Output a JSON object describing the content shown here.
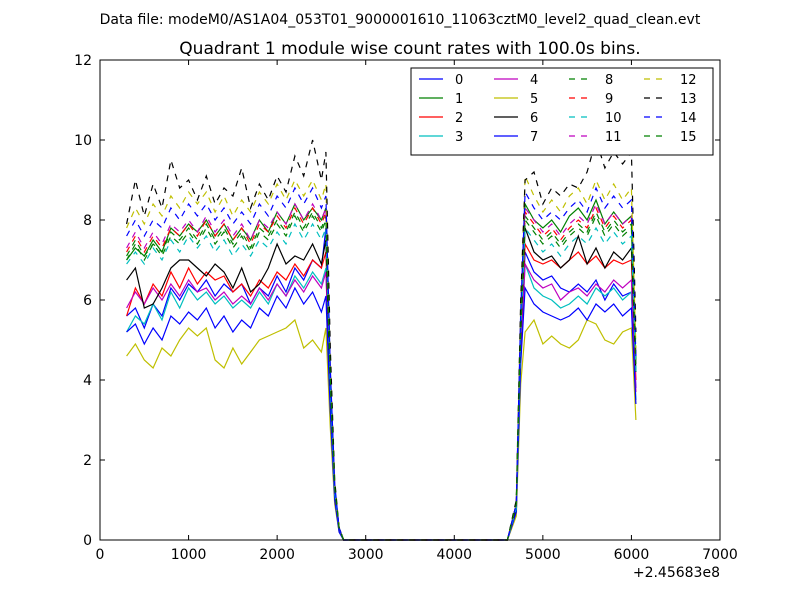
{
  "chart_data": {
    "type": "line",
    "suptitle": "Data file: modeM0/AS1A04_053T01_9000001610_11063cztM0_level2_quad_clean.evt",
    "title": "Quadrant 1 module wise count rates with 100.0s bins.",
    "xlabel": "",
    "ylabel": "",
    "offset_label": "+2.45683e8",
    "xlim": [
      0,
      7000
    ],
    "ylim": [
      0,
      12
    ],
    "xticks": [
      "0",
      "1000",
      "2000",
      "3000",
      "4000",
      "5000",
      "6000",
      "7000"
    ],
    "yticks": [
      "0",
      "2",
      "4",
      "6",
      "8",
      "10",
      "12"
    ],
    "legend_position": "top-right",
    "x": [
      300,
      400,
      500,
      600,
      700,
      800,
      900,
      1000,
      1100,
      1200,
      1300,
      1400,
      1500,
      1600,
      1700,
      1800,
      1900,
      2000,
      2100,
      2200,
      2300,
      2400,
      2500,
      2550,
      2600,
      2650,
      2700,
      2750,
      2800,
      2900,
      3000,
      3200,
      3400,
      3600,
      3800,
      4000,
      4200,
      4400,
      4600,
      4700,
      4750,
      4800,
      4900,
      5000,
      5100,
      5200,
      5300,
      5400,
      5500,
      5600,
      5700,
      5800,
      5900,
      6000,
      6050
    ],
    "series": [
      {
        "name": "0",
        "color": "#0000ff",
        "dash": "solid",
        "values": [
          5.6,
          5.8,
          5.3,
          5.9,
          5.6,
          6.3,
          6.0,
          6.4,
          6.2,
          6.5,
          6.1,
          6.4,
          6.2,
          6.4,
          5.9,
          6.3,
          6.1,
          6.6,
          6.2,
          6.8,
          6.5,
          7.0,
          6.8,
          7.8,
          3.5,
          1.2,
          0.3,
          0,
          0,
          0,
          0,
          0,
          0,
          0,
          0,
          0,
          0,
          0,
          0,
          0.8,
          4.8,
          7.2,
          6.7,
          6.5,
          6.6,
          6.3,
          6.2,
          6.4,
          6.2,
          6.5,
          6.0,
          6.4,
          6.1,
          6.2,
          3.8
        ]
      },
      {
        "name": "1",
        "color": "#008000",
        "dash": "solid",
        "values": [
          7.0,
          7.3,
          7.1,
          7.5,
          7.2,
          7.8,
          7.6,
          7.9,
          7.7,
          8.0,
          7.6,
          7.9,
          7.5,
          7.8,
          7.5,
          8.0,
          7.7,
          8.2,
          7.9,
          8.4,
          8.0,
          8.3,
          8.0,
          8.3,
          4.2,
          1.3,
          0.3,
          0,
          0,
          0,
          0,
          0,
          0,
          0,
          0,
          0,
          0,
          0,
          0,
          0.9,
          5.5,
          8.4,
          8.0,
          7.8,
          8.0,
          7.7,
          8.1,
          8.3,
          8.0,
          8.5,
          7.9,
          8.2,
          7.9,
          8.1,
          4.5
        ]
      },
      {
        "name": "2",
        "color": "#ff0000",
        "dash": "solid",
        "values": [
          5.6,
          6.3,
          5.9,
          6.4,
          6.1,
          6.7,
          6.3,
          6.8,
          6.4,
          6.7,
          6.5,
          6.6,
          6.2,
          6.4,
          6.1,
          6.5,
          6.3,
          6.7,
          6.5,
          6.9,
          6.6,
          7.0,
          6.8,
          7.2,
          3.6,
          1.2,
          0.3,
          0,
          0,
          0,
          0,
          0,
          0,
          0,
          0,
          0,
          0,
          0,
          0,
          0.8,
          5.0,
          7.4,
          7.0,
          6.9,
          7.0,
          6.8,
          7.0,
          7.2,
          6.9,
          7.1,
          6.8,
          7.0,
          6.9,
          7.0,
          4.0
        ]
      },
      {
        "name": "3",
        "color": "#00bfbf",
        "dash": "solid",
        "values": [
          5.2,
          5.6,
          5.4,
          5.9,
          5.5,
          6.2,
          5.8,
          6.3,
          6.0,
          6.2,
          5.9,
          6.1,
          5.8,
          6.0,
          5.8,
          6.2,
          5.9,
          6.4,
          6.1,
          6.6,
          6.3,
          6.7,
          6.4,
          6.8,
          3.4,
          1.1,
          0.3,
          0,
          0,
          0,
          0,
          0,
          0,
          0,
          0,
          0,
          0,
          0,
          0,
          0.7,
          4.7,
          6.9,
          6.3,
          6.1,
          6.0,
          5.8,
          5.9,
          6.1,
          5.9,
          6.3,
          6.1,
          6.3,
          6.0,
          6.2,
          3.5
        ]
      },
      {
        "name": "4",
        "color": "#bf00bf",
        "dash": "solid",
        "values": [
          5.8,
          6.2,
          5.9,
          6.3,
          6.0,
          6.4,
          6.1,
          6.5,
          6.2,
          6.3,
          6.0,
          6.2,
          5.9,
          6.1,
          5.9,
          6.3,
          6.0,
          6.4,
          6.1,
          6.5,
          6.2,
          6.6,
          6.3,
          6.7,
          3.4,
          1.1,
          0.3,
          0,
          0,
          0,
          0,
          0,
          0,
          0,
          0,
          0,
          0,
          0,
          0,
          0.7,
          4.7,
          6.9,
          6.5,
          6.3,
          6.4,
          6.0,
          6.2,
          6.3,
          6.1,
          6.4,
          6.2,
          6.5,
          6.3,
          6.5,
          3.7
        ]
      },
      {
        "name": "5",
        "color": "#bfbf00",
        "dash": "solid",
        "values": [
          4.6,
          4.9,
          4.5,
          4.3,
          4.8,
          4.6,
          5.0,
          5.3,
          5.1,
          5.3,
          4.5,
          4.3,
          4.8,
          4.4,
          4.7,
          5.0,
          5.1,
          5.2,
          5.3,
          5.5,
          4.8,
          5.0,
          4.7,
          5.3,
          2.8,
          0.9,
          0.2,
          0,
          0,
          0,
          0,
          0,
          0,
          0,
          0,
          0,
          0,
          0,
          0,
          0.6,
          3.9,
          5.2,
          5.5,
          4.9,
          5.1,
          4.9,
          4.8,
          5.0,
          5.5,
          5.4,
          5.0,
          4.9,
          5.2,
          5.3,
          3.0
        ]
      },
      {
        "name": "6",
        "color": "#000000",
        "dash": "solid",
        "values": [
          6.5,
          6.8,
          5.8,
          5.9,
          6.3,
          6.8,
          7.0,
          7.0,
          6.8,
          6.6,
          6.9,
          6.7,
          6.3,
          6.8,
          6.2,
          6.4,
          6.8,
          7.4,
          6.9,
          7.1,
          7.0,
          7.4,
          6.9,
          7.5,
          3.7,
          1.2,
          0.3,
          0,
          0,
          0,
          0,
          0,
          0,
          0,
          0,
          0,
          0,
          0,
          0,
          0.8,
          5.1,
          7.8,
          7.2,
          7.0,
          7.1,
          6.8,
          7.0,
          7.6,
          6.9,
          7.3,
          6.8,
          7.2,
          7.0,
          7.3,
          4.2
        ]
      },
      {
        "name": "7",
        "color": "#0000ff",
        "dash": "solid",
        "values": [
          5.2,
          5.4,
          4.9,
          5.3,
          5.0,
          5.6,
          5.4,
          5.7,
          5.5,
          5.8,
          5.3,
          5.6,
          5.2,
          5.5,
          5.3,
          5.8,
          5.6,
          6.1,
          5.8,
          6.3,
          5.9,
          6.2,
          5.7,
          6.1,
          3.2,
          1.0,
          0.2,
          0,
          0,
          0,
          0,
          0,
          0,
          0,
          0,
          0,
          0,
          0,
          0,
          0.7,
          4.4,
          6.3,
          5.9,
          5.7,
          5.6,
          5.5,
          5.6,
          5.8,
          5.5,
          5.9,
          5.7,
          5.9,
          5.6,
          5.8,
          3.4
        ]
      },
      {
        "name": "8",
        "color": "#008000",
        "dash": "dashed",
        "values": [
          7.1,
          7.5,
          7.1,
          7.4,
          7.2,
          7.7,
          7.5,
          7.8,
          7.5,
          7.9,
          7.5,
          7.8,
          7.4,
          7.7,
          7.3,
          7.8,
          7.6,
          8.0,
          7.7,
          8.2,
          7.8,
          8.2,
          7.8,
          8.1,
          4.0,
          1.3,
          0.3,
          0,
          0,
          0,
          0,
          0,
          0,
          0,
          0,
          0,
          0,
          0,
          0,
          0.9,
          5.4,
          8.1,
          7.8,
          7.5,
          7.7,
          7.4,
          7.7,
          7.9,
          7.7,
          8.2,
          7.7,
          8.0,
          7.7,
          7.9,
          4.4
        ]
      },
      {
        "name": "9",
        "color": "#ff0000",
        "dash": "dashed",
        "values": [
          7.2,
          7.6,
          7.2,
          7.6,
          7.3,
          7.8,
          7.6,
          7.9,
          7.6,
          8.0,
          7.6,
          7.9,
          7.5,
          7.8,
          7.4,
          7.9,
          7.7,
          8.1,
          7.8,
          8.3,
          7.9,
          8.3,
          7.9,
          8.2,
          4.1,
          1.3,
          0.3,
          0,
          0,
          0,
          0,
          0,
          0,
          0,
          0,
          0,
          0,
          0,
          0,
          0.9,
          5.5,
          8.2,
          7.9,
          7.6,
          7.8,
          7.5,
          7.8,
          8.0,
          7.8,
          8.3,
          7.8,
          8.1,
          7.8,
          8.0,
          4.5
        ]
      },
      {
        "name": "10",
        "color": "#00bfbf",
        "dash": "dashed",
        "values": [
          6.9,
          7.2,
          6.9,
          7.3,
          7.0,
          7.5,
          7.2,
          7.6,
          7.3,
          7.6,
          7.2,
          7.5,
          7.1,
          7.4,
          7.1,
          7.5,
          7.3,
          7.7,
          7.4,
          7.9,
          7.5,
          7.9,
          7.5,
          7.8,
          3.9,
          1.2,
          0.3,
          0,
          0,
          0,
          0,
          0,
          0,
          0,
          0,
          0,
          0,
          0,
          0,
          0.8,
          5.2,
          7.8,
          7.5,
          7.2,
          7.4,
          7.1,
          7.4,
          7.6,
          7.4,
          7.8,
          7.4,
          7.7,
          7.4,
          7.6,
          4.2
        ]
      },
      {
        "name": "11",
        "color": "#bf00bf",
        "dash": "dashed",
        "values": [
          7.3,
          7.7,
          7.3,
          7.7,
          7.4,
          7.9,
          7.7,
          8.0,
          7.7,
          8.1,
          7.7,
          8.0,
          7.6,
          7.9,
          7.5,
          8.0,
          7.8,
          8.2,
          7.9,
          8.4,
          8.0,
          8.4,
          8.0,
          8.3,
          4.1,
          1.3,
          0.3,
          0,
          0,
          0,
          0,
          0,
          0,
          0,
          0,
          0,
          0,
          0,
          0,
          0.9,
          5.5,
          8.3,
          8.0,
          7.7,
          7.9,
          7.6,
          7.9,
          8.1,
          7.9,
          8.4,
          7.9,
          8.2,
          7.9,
          8.1,
          4.5
        ]
      },
      {
        "name": "12",
        "color": "#bfbf00",
        "dash": "dashed",
        "values": [
          7.8,
          8.3,
          7.9,
          8.4,
          8.1,
          8.6,
          8.3,
          8.7,
          8.4,
          8.7,
          8.2,
          8.6,
          8.1,
          8.5,
          8.2,
          8.7,
          8.4,
          8.9,
          8.5,
          9.0,
          8.6,
          9.0,
          8.5,
          8.9,
          4.4,
          1.4,
          0.3,
          0,
          0,
          0,
          0,
          0,
          0,
          0,
          0,
          0,
          0,
          0,
          0,
          0.9,
          5.8,
          9.1,
          8.6,
          8.2,
          8.5,
          8.2,
          8.6,
          8.8,
          8.4,
          9.0,
          8.5,
          8.9,
          8.5,
          8.8,
          4.8
        ]
      },
      {
        "name": "13",
        "color": "#000000",
        "dash": "dashed",
        "values": [
          7.9,
          9.0,
          8.1,
          8.9,
          8.3,
          9.5,
          8.8,
          9.0,
          8.5,
          9.1,
          8.4,
          8.8,
          8.6,
          9.3,
          8.3,
          8.9,
          8.5,
          9.1,
          8.7,
          9.6,
          9.1,
          10.0,
          9.0,
          9.7,
          4.8,
          1.5,
          0.3,
          0,
          0,
          0,
          0,
          0,
          0,
          0,
          0,
          0,
          0,
          0,
          0,
          1.0,
          6.0,
          9.0,
          9.2,
          8.4,
          8.8,
          8.6,
          8.9,
          8.8,
          9.2,
          10.0,
          9.3,
          9.7,
          9.4,
          9.7,
          5.2
        ]
      },
      {
        "name": "14",
        "color": "#0000ff",
        "dash": "dashed",
        "values": [
          7.6,
          8.0,
          7.6,
          8.0,
          7.8,
          8.3,
          8.0,
          8.4,
          8.1,
          8.4,
          8.0,
          8.3,
          7.9,
          8.2,
          7.9,
          8.4,
          8.1,
          8.6,
          8.3,
          8.8,
          8.4,
          8.8,
          8.3,
          8.6,
          4.3,
          1.4,
          0.3,
          0,
          0,
          0,
          0,
          0,
          0,
          0,
          0,
          0,
          0,
          0,
          0,
          0.9,
          5.7,
          8.7,
          8.3,
          8.0,
          8.2,
          8.0,
          8.3,
          8.5,
          8.2,
          8.8,
          8.3,
          8.6,
          8.3,
          8.5,
          4.6
        ]
      },
      {
        "name": "15",
        "color": "#008000",
        "dash": "dashed",
        "values": [
          7.0,
          7.4,
          7.0,
          7.4,
          7.1,
          7.6,
          7.4,
          7.7,
          7.4,
          7.8,
          7.4,
          7.7,
          7.3,
          7.6,
          7.2,
          7.7,
          7.5,
          7.9,
          7.6,
          8.1,
          7.7,
          8.1,
          7.7,
          8.0,
          4.0,
          1.3,
          0.3,
          0,
          0,
          0,
          0,
          0,
          0,
          0,
          0,
          0,
          0,
          0,
          0,
          0.9,
          5.3,
          8.0,
          7.7,
          7.4,
          7.6,
          7.3,
          7.6,
          7.8,
          7.6,
          8.1,
          7.6,
          7.9,
          7.6,
          7.8,
          4.4
        ]
      }
    ]
  }
}
